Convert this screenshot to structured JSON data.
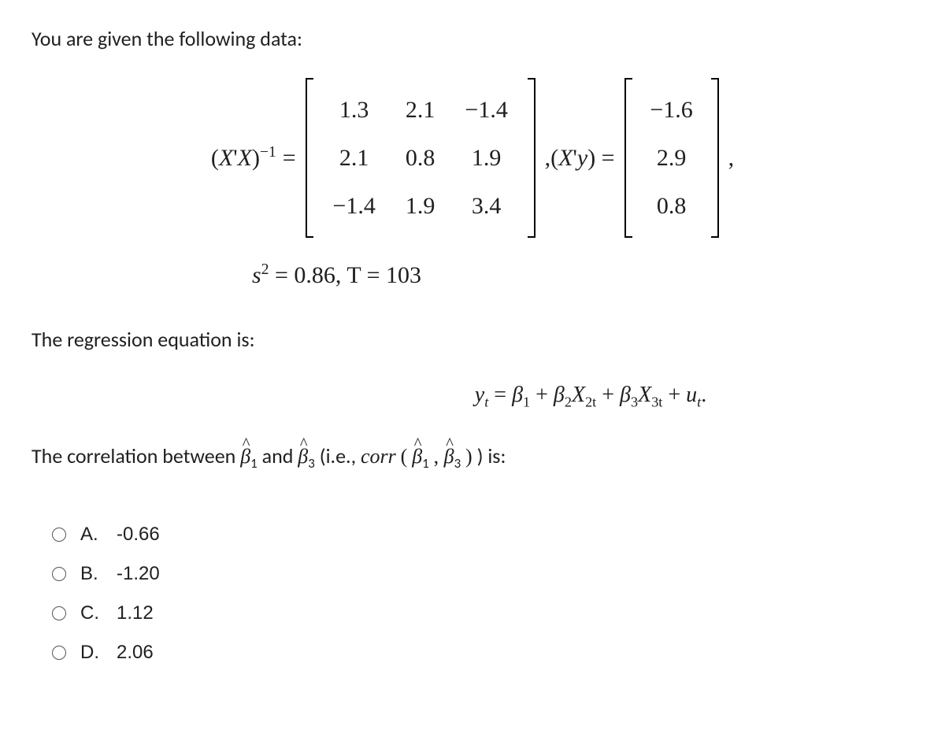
{
  "intro": "You are given the following data:",
  "matrixA_label_left": "(X' X)",
  "matrixA_exp": "−1",
  "eq": " = ",
  "matrixA": {
    "rows": [
      [
        "1.3",
        "2.1",
        "−1.4"
      ],
      [
        "2.1",
        "0.8",
        "1.9"
      ],
      [
        "−1.4",
        "1.9",
        "3.4"
      ]
    ]
  },
  "between": ",(X' y) = ",
  "vectorB": {
    "rows": [
      "−1.6",
      "2.9",
      "0.8"
    ]
  },
  "trailing_comma": ",",
  "s_line_s": "s",
  "s_line_exp": "2",
  "s_line_rest": " = 0.86,    T = 103",
  "para2": "The regression equation is:",
  "regression_eq": "yₜ = β₁ + β₂X₂ₜ + β₃X₃ₜ  + uₜ.",
  "corr_before": "The correlation between ",
  "beta1": "β",
  "beta1_sub": "1",
  "corr_mid": " and ",
  "beta3": "β",
  "beta3_sub": "3",
  "corr_after1": " (i.e., ",
  "corr_word": "corr",
  "corr_paren_open": "(",
  "beta1h": "β",
  "beta1h_sub": "1",
  "corr_comma": ", ",
  "beta3h": "β",
  "beta3h_sub": "3",
  "corr_paren_close": ")",
  "corr_after2": ") is:",
  "options": [
    {
      "letter": "A.",
      "value": "-0.66"
    },
    {
      "letter": "B.",
      "value": "-1.20"
    },
    {
      "letter": "C.",
      "value": "1.12"
    },
    {
      "letter": "D.",
      "value": "2.06"
    }
  ]
}
